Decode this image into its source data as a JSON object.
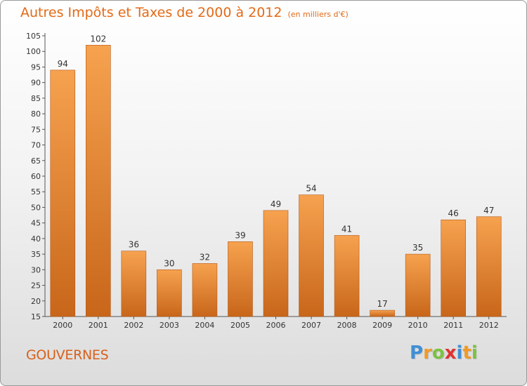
{
  "chart_data": {
    "type": "bar",
    "title": "Autres Impôts et Taxes de 2000 à 2012",
    "unit": "(en milliers d'€)",
    "categories": [
      "2000",
      "2001",
      "2002",
      "2003",
      "2004",
      "2005",
      "2006",
      "2007",
      "2008",
      "2009",
      "2010",
      "2011",
      "2012"
    ],
    "values": [
      94,
      102,
      36,
      30,
      32,
      39,
      49,
      54,
      41,
      17,
      35,
      46,
      47
    ],
    "ylim": [
      15,
      105
    ],
    "yticks": [
      15,
      20,
      25,
      30,
      35,
      40,
      45,
      50,
      55,
      60,
      65,
      70,
      75,
      80,
      85,
      90,
      95,
      100,
      105
    ],
    "grid": false,
    "bar_color_light": "#f6a24f",
    "bar_color_dark": "#c8661a"
  },
  "footer": {
    "location": "GOUVERNES"
  },
  "logo": {
    "text": "Proxiti",
    "letters": [
      "P",
      "r",
      "o",
      "x",
      "i",
      "t",
      "i"
    ],
    "colors": [
      "#3f8fd6",
      "#f09a26",
      "#7cc242",
      "#e0322f",
      "#3f8fd6",
      "#f09a26",
      "#7cc242"
    ]
  }
}
